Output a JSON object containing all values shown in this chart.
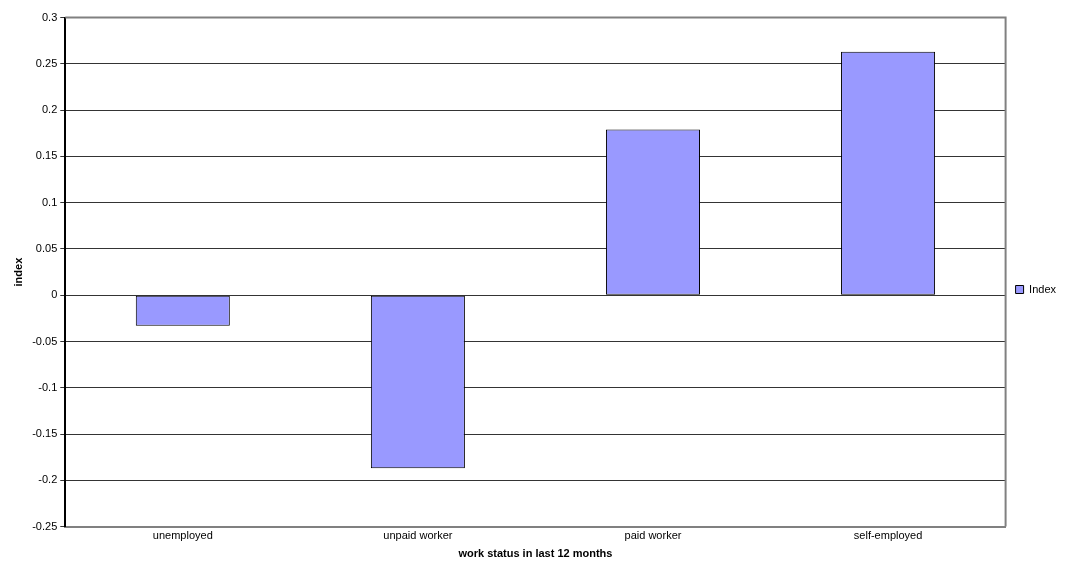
{
  "chart_data": {
    "type": "bar",
    "xlabel": "work status in last 12 months",
    "ylabel": "index",
    "categories": [
      "unemployed",
      "unpaid worker",
      "paid worker",
      "self-employed"
    ],
    "series": [
      {
        "name": "Index",
        "color": "#9999ff",
        "values": [
          -0.033,
          -0.187,
          0.179,
          0.263
        ]
      }
    ],
    "ylim": [
      -0.25,
      0.3
    ],
    "yticks": [
      -0.25,
      -0.2,
      -0.15,
      -0.1,
      -0.05,
      0,
      0.05,
      0.1,
      0.15,
      0.2,
      0.25,
      0.3
    ],
    "grid": "y",
    "legend": "right"
  }
}
